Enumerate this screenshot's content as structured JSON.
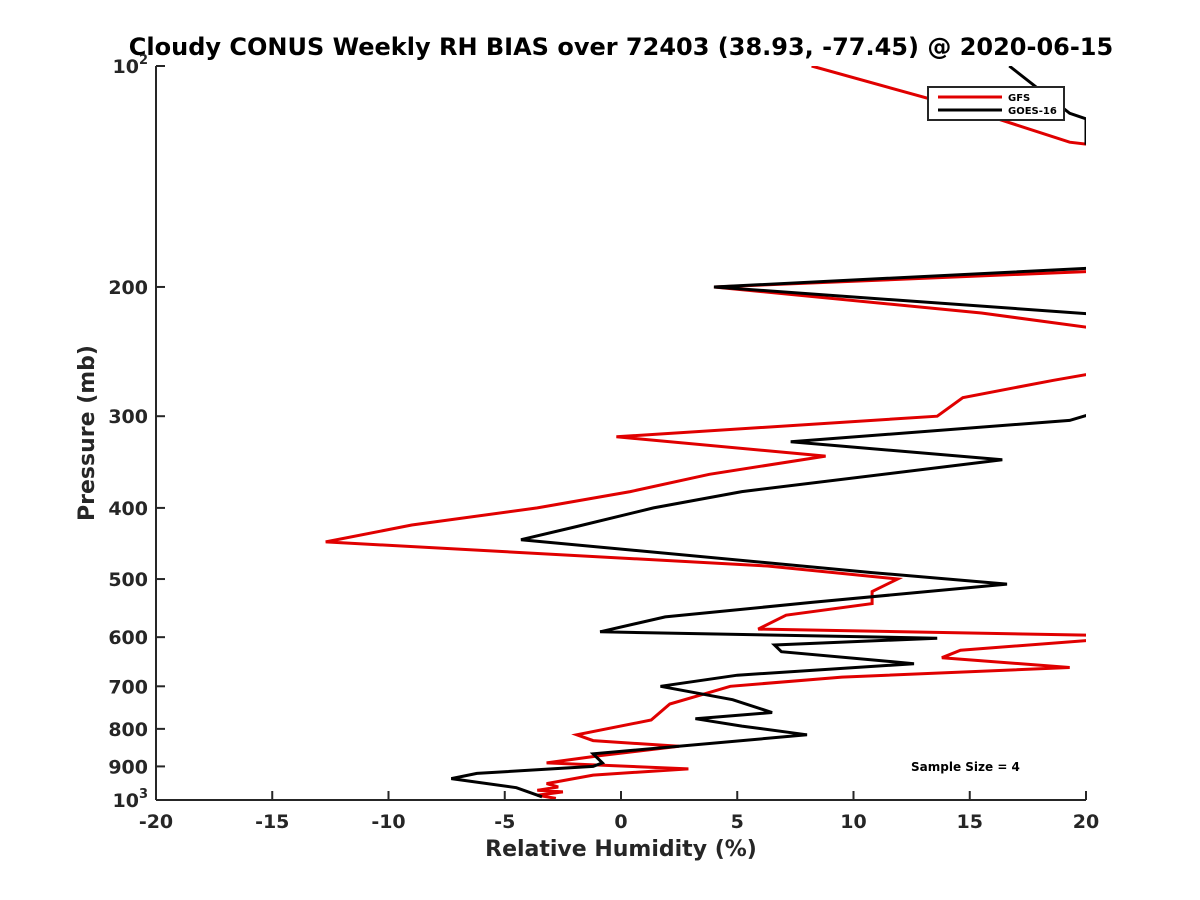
{
  "chart_data": {
    "type": "line",
    "title": "Cloudy CONUS Weekly RH BIAS over 72403 (38.93, -77.45) @ 2020-06-15",
    "xlabel": "Relative Humidity (%)",
    "ylabel": "Pressure (mb)",
    "xlim": [
      -20,
      20
    ],
    "ylim": [
      100,
      1000
    ],
    "y_scale": "log",
    "y_reversed": true,
    "grid": false,
    "legend_position": "top-right",
    "x_ticks": [
      "-20",
      "-15",
      "-10",
      "-5",
      "0",
      "5",
      "10",
      "15",
      "20"
    ],
    "y_ticks": [
      {
        "value": 100,
        "base": "10",
        "exp": "2"
      },
      {
        "value": 200,
        "label": "200"
      },
      {
        "value": 300,
        "label": "300"
      },
      {
        "value": 400,
        "label": "400"
      },
      {
        "value": 500,
        "label": "500"
      },
      {
        "value": 600,
        "label": "600"
      },
      {
        "value": 700,
        "label": "700"
      },
      {
        "value": 800,
        "label": "800"
      },
      {
        "value": 900,
        "label": "900"
      },
      {
        "value": 1000,
        "base": "10",
        "exp": "3"
      }
    ],
    "series": [
      {
        "name": "GFS",
        "color": "#e00000",
        "points": [
          [
            8.2,
            100
          ],
          [
            15.1,
            115
          ],
          [
            19.3,
            127
          ],
          [
            20.2,
            128
          ],
          [
            null,
            null
          ],
          [
            21.0,
            190
          ],
          [
            4.0,
            200
          ],
          [
            15.5,
            217
          ],
          [
            20.5,
            228
          ],
          [
            null,
            null
          ],
          [
            21.0,
            260
          ],
          [
            18.6,
            268
          ],
          [
            14.7,
            283
          ],
          [
            13.6,
            300
          ],
          [
            -0.2,
            320
          ],
          [
            8.8,
            340
          ],
          [
            3.8,
            360
          ],
          [
            0.4,
            380
          ],
          [
            -3.6,
            400
          ],
          [
            -9.0,
            422
          ],
          [
            -12.7,
            445
          ],
          [
            6.3,
            480
          ],
          [
            11.9,
            500
          ],
          [
            10.8,
            520
          ],
          [
            10.8,
            540
          ],
          [
            7.1,
            560
          ],
          [
            5.9,
            585
          ],
          [
            21.0,
            597
          ],
          [
            20.5,
            605
          ],
          [
            14.6,
            625
          ],
          [
            13.8,
            640
          ],
          [
            19.3,
            660
          ],
          [
            9.5,
            680
          ],
          [
            4.7,
            700
          ],
          [
            2.1,
            740
          ],
          [
            1.3,
            778
          ],
          [
            -1.9,
            815
          ],
          [
            -1.2,
            830
          ],
          [
            2.5,
            845
          ],
          [
            -0.9,
            870
          ],
          [
            -3.2,
            890
          ],
          [
            2.9,
            907
          ],
          [
            -1.2,
            925
          ],
          [
            -3.2,
            950
          ],
          [
            -2.7,
            960
          ],
          [
            -3.6,
            970
          ],
          [
            -2.5,
            975
          ],
          [
            -3.6,
            985
          ],
          [
            -2.8,
            995
          ]
        ]
      },
      {
        "name": "GOES-16",
        "color": "#000000",
        "points": [
          [
            16.7,
            100
          ],
          [
            19.3,
            116
          ],
          [
            20.0,
            118
          ],
          [
            20.0,
            128
          ],
          [
            null,
            null
          ],
          [
            21.0,
            188
          ],
          [
            4.0,
            200
          ],
          [
            20.5,
            218
          ],
          [
            null,
            null
          ],
          [
            21.0,
            293
          ],
          [
            19.3,
            304
          ],
          [
            7.3,
            325
          ],
          [
            16.4,
            344
          ],
          [
            5.2,
            380
          ],
          [
            1.4,
            400
          ],
          [
            -1.9,
            424
          ],
          [
            -4.3,
            442
          ],
          [
            10.8,
            490
          ],
          [
            16.6,
            508
          ],
          [
            8.2,
            538
          ],
          [
            1.9,
            563
          ],
          [
            -0.9,
            590
          ],
          [
            13.6,
            602
          ],
          [
            6.6,
            615
          ],
          [
            6.9,
            628
          ],
          [
            12.6,
            652
          ],
          [
            5.0,
            676
          ],
          [
            1.7,
            700
          ],
          [
            4.8,
            730
          ],
          [
            6.5,
            760
          ],
          [
            3.2,
            775
          ],
          [
            5.2,
            793
          ],
          [
            8.0,
            815
          ],
          [
            -1.2,
            865
          ],
          [
            -0.8,
            890
          ],
          [
            -1.2,
            900
          ],
          [
            -6.2,
            920
          ],
          [
            -7.3,
            935
          ],
          [
            -4.5,
            962
          ],
          [
            -3.4,
            990
          ]
        ]
      }
    ],
    "annotations": [
      "Sample Size = 4"
    ]
  }
}
